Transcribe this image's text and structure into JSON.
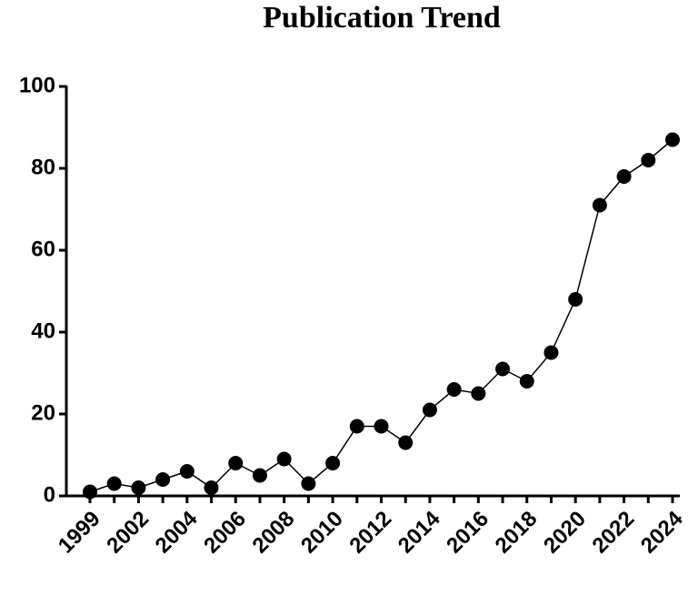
{
  "chart_data": {
    "type": "line",
    "title": "Publication Trend",
    "categories": [
      "1999",
      null,
      "2002",
      null,
      "2004",
      null,
      "2006",
      null,
      "2008",
      null,
      "2010",
      null,
      "2012",
      null,
      "2014",
      null,
      "2016",
      null,
      "2018",
      null,
      "2020",
      null,
      "2022",
      null,
      "2024"
    ],
    "values": [
      1,
      3,
      2,
      4,
      6,
      2,
      8,
      5,
      9,
      3,
      8,
      17,
      17,
      13,
      21,
      26,
      25,
      31,
      28,
      35,
      48,
      71,
      78,
      82,
      87
    ],
    "color": "#000000",
    "ylim": [
      0,
      100
    ],
    "yticks": [
      0,
      20,
      40,
      60,
      80,
      100
    ],
    "grid": false
  }
}
